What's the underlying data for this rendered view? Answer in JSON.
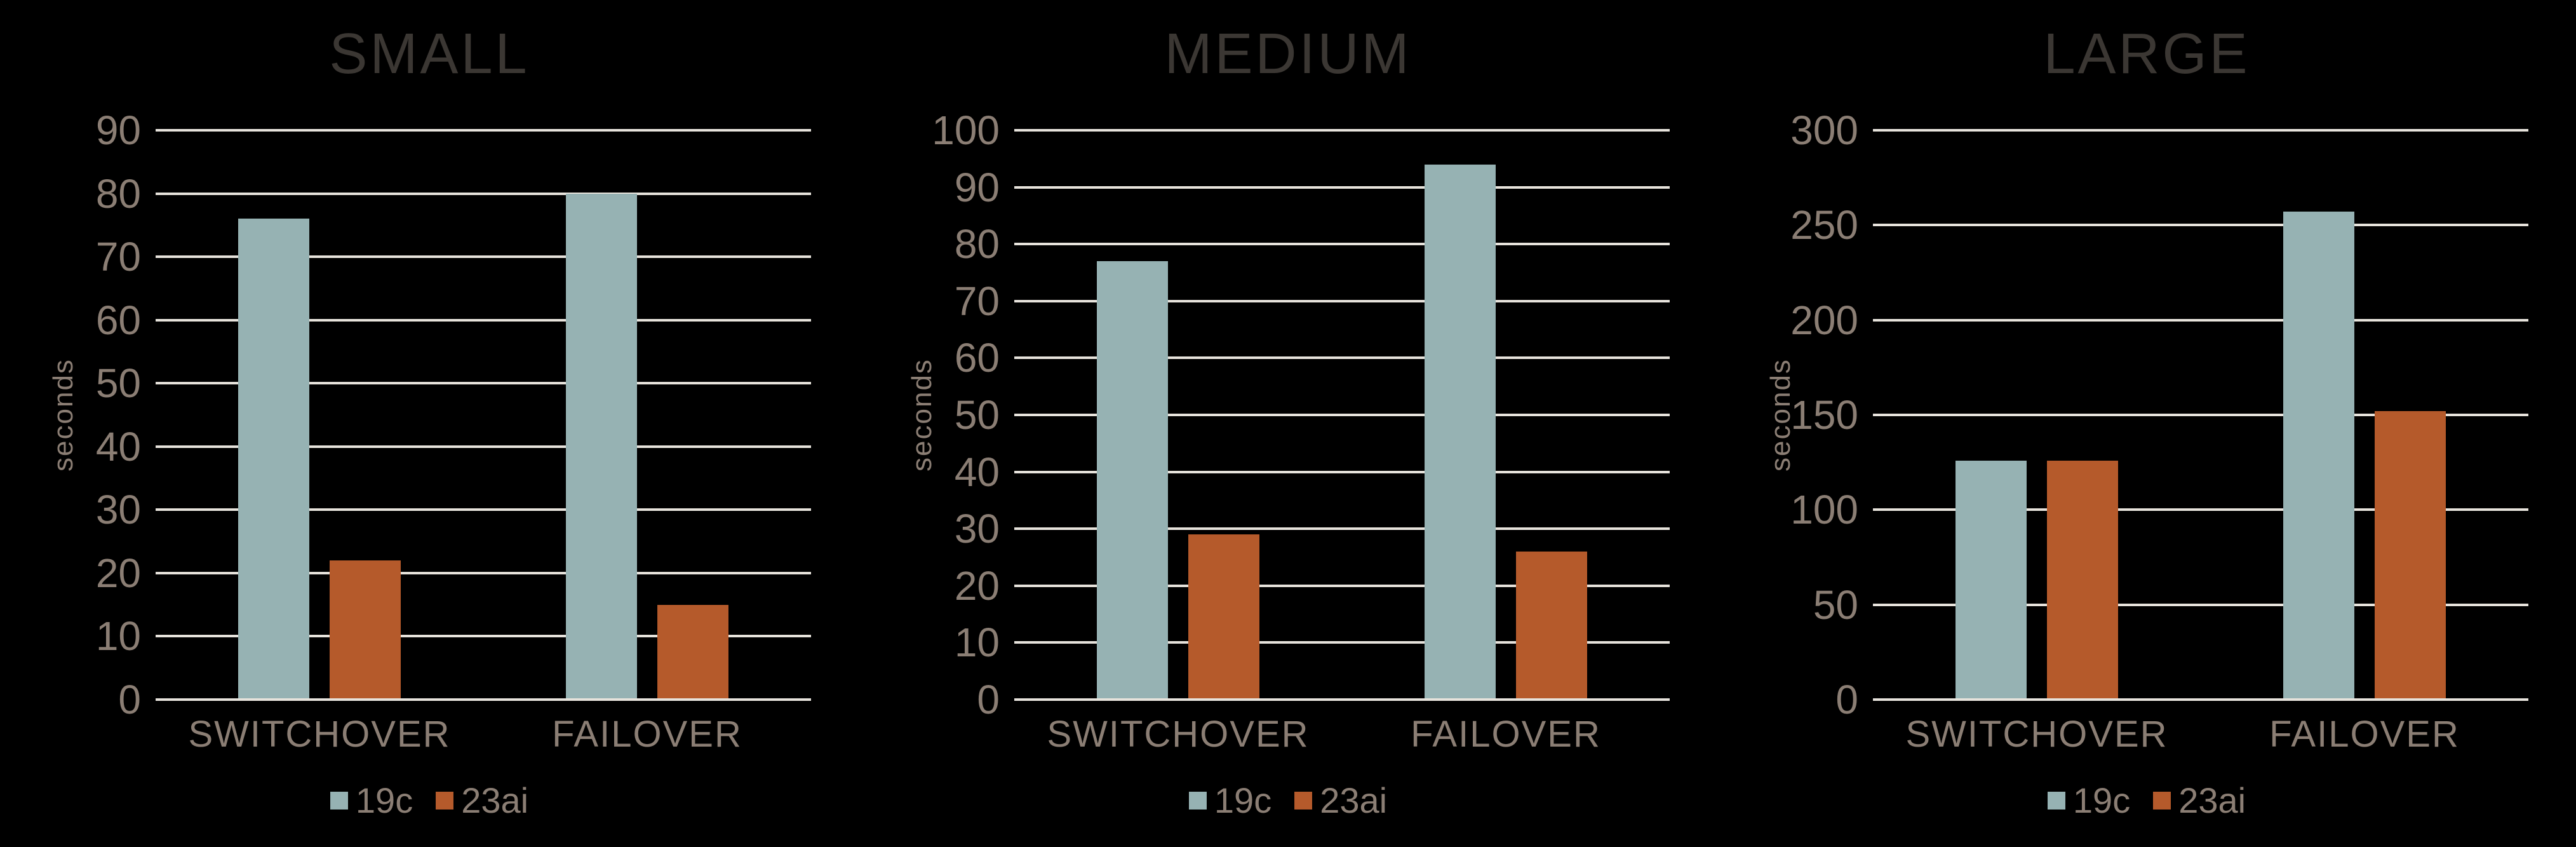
{
  "page": {
    "background": "#000000"
  },
  "style": {
    "gridline_color": "#E7E3DC",
    "text_color": "#8B7E74",
    "title_color": "#3B3733"
  },
  "chart_data": [
    {
      "type": "bar",
      "title": "SMALL",
      "xlabel": "",
      "ylabel": "seconds",
      "ylim": [
        0,
        90
      ],
      "ytick_step": 10,
      "grid": true,
      "legend_position": "bottom",
      "categories": [
        "SWITCHOVER",
        "FAILOVER"
      ],
      "series": [
        {
          "name": "19c",
          "color": "#96B2B3",
          "values": [
            76,
            80
          ]
        },
        {
          "name": "23ai",
          "color": "#B55A2B",
          "values": [
            22,
            15
          ]
        }
      ]
    },
    {
      "type": "bar",
      "title": "MEDIUM",
      "xlabel": "",
      "ylabel": "seconds",
      "ylim": [
        0,
        100
      ],
      "ytick_step": 10,
      "grid": true,
      "legend_position": "bottom",
      "categories": [
        "SWITCHOVER",
        "FAILOVER"
      ],
      "series": [
        {
          "name": "19c",
          "color": "#96B2B3",
          "values": [
            77,
            94
          ]
        },
        {
          "name": "23ai",
          "color": "#B55A2B",
          "values": [
            29,
            26
          ]
        }
      ]
    },
    {
      "type": "bar",
      "title": "LARGE",
      "xlabel": "",
      "ylabel": "seconds",
      "ylim": [
        0,
        300
      ],
      "ytick_step": 50,
      "grid": true,
      "legend_position": "bottom",
      "categories": [
        "SWITCHOVER",
        "FAILOVER"
      ],
      "series": [
        {
          "name": "19c",
          "color": "#96B2B3",
          "values": [
            126,
            257
          ]
        },
        {
          "name": "23ai",
          "color": "#B55A2B",
          "values": [
            126,
            152
          ]
        }
      ]
    }
  ]
}
